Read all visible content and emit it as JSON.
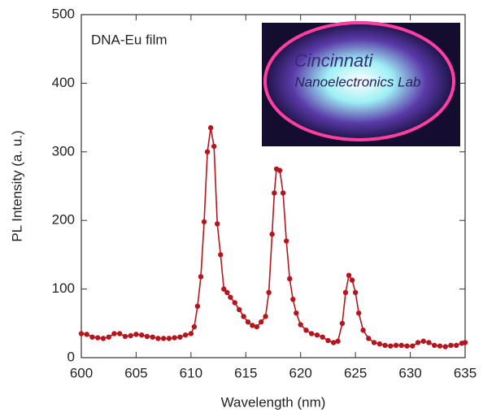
{
  "chart_data": {
    "type": "line",
    "annotation": "DNA-Eu film",
    "x_label": "Wavelength (nm)",
    "y_label": "PL Intensity (a. u.)",
    "inset_labels": [
      "Cincinnati",
      "Nanoelectronics Lab"
    ],
    "xlim": [
      600,
      635
    ],
    "xticks": [
      600,
      605,
      610,
      615,
      620,
      625,
      630,
      635
    ],
    "ylim": [
      0,
      500
    ],
    "yticks": [
      0,
      100,
      200,
      300,
      400,
      500
    ],
    "x": [
      600,
      600.5,
      601,
      601.5,
      602,
      602.5,
      603,
      603.5,
      604,
      604.5,
      605,
      605.5,
      606,
      606.5,
      607,
      607.5,
      608,
      608.5,
      609,
      609.5,
      610,
      610.3,
      610.6,
      610.9,
      611.2,
      611.5,
      611.8,
      612.1,
      612.4,
      612.7,
      613,
      613.3,
      613.6,
      614,
      614.4,
      614.8,
      615.2,
      615.6,
      616,
      616.4,
      616.8,
      617.1,
      617.4,
      617.6,
      617.8,
      618.1,
      618.4,
      618.7,
      619,
      619.3,
      619.6,
      620,
      620.5,
      621,
      621.5,
      622,
      622.5,
      623,
      623.4,
      623.8,
      624.1,
      624.4,
      624.7,
      625,
      625.3,
      625.7,
      626.2,
      626.7,
      627.2,
      627.7,
      628.2,
      628.7,
      629.2,
      629.7,
      630.2,
      630.7,
      631.2,
      631.7,
      632.2,
      632.7,
      633.2,
      633.7,
      634.2,
      634.7,
      635
    ],
    "series": [
      {
        "color": "#b5161e",
        "values": [
          35,
          34,
          30,
          29,
          28,
          30,
          35,
          35,
          31,
          32,
          34,
          33,
          31,
          30,
          28,
          28,
          28,
          29,
          30,
          33,
          35,
          45,
          75,
          118,
          198,
          300,
          335,
          308,
          195,
          150,
          100,
          95,
          88,
          80,
          70,
          60,
          52,
          47,
          45,
          52,
          60,
          95,
          180,
          240,
          275,
          273,
          240,
          170,
          115,
          85,
          65,
          48,
          40,
          35,
          33,
          30,
          25,
          22,
          24,
          50,
          95,
          120,
          113,
          95,
          65,
          40,
          28,
          22,
          20,
          18,
          17,
          18,
          18,
          17,
          17,
          22,
          24,
          22,
          18,
          17,
          16,
          18,
          18,
          21,
          22
        ]
      }
    ]
  }
}
